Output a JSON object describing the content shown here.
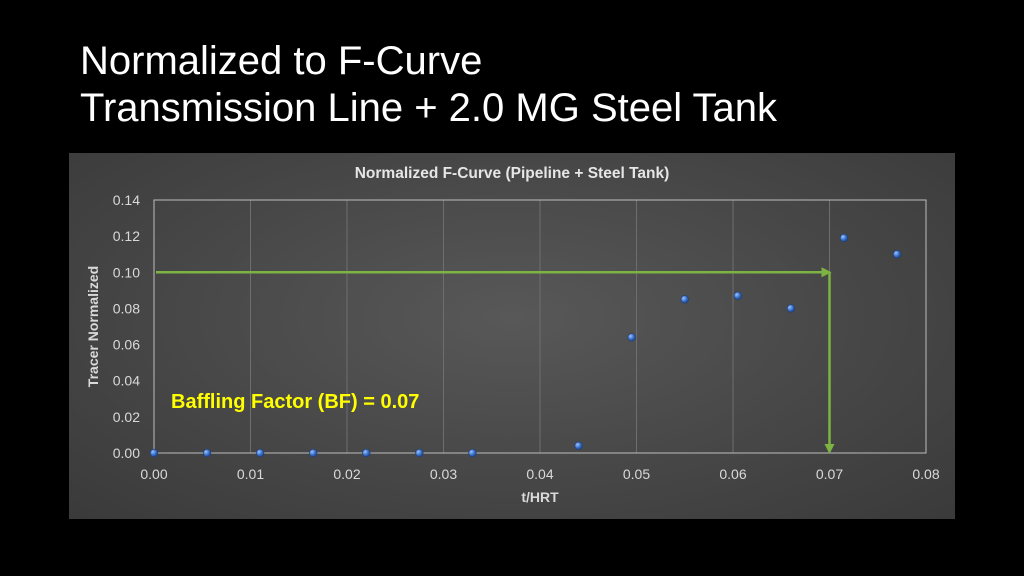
{
  "slide": {
    "title_line1": "Normalized to F-Curve",
    "title_line2": "Transmission Line + 2.0 MG Steel Tank"
  },
  "chart_data": {
    "type": "scatter",
    "title": "Normalized F-Curve (Pipeline + Steel Tank)",
    "xlabel": "t/HRT",
    "ylabel": "Tracer Normalized",
    "xlim": [
      0,
      0.08
    ],
    "ylim": [
      0,
      0.14
    ],
    "x_ticks": [
      "0.00",
      "0.01",
      "0.02",
      "0.03",
      "0.04",
      "0.05",
      "0.06",
      "0.07",
      "0.08"
    ],
    "y_ticks": [
      "0.00",
      "0.02",
      "0.04",
      "0.06",
      "0.08",
      "0.10",
      "0.12",
      "0.14"
    ],
    "grid": "vertical",
    "legend": "none",
    "series": [
      {
        "x": [
          0.0,
          0.0055,
          0.011,
          0.0165,
          0.022,
          0.0275,
          0.033,
          0.044,
          0.0495,
          0.055,
          0.0605,
          0.066,
          0.0715,
          0.077
        ],
        "y": [
          0.0,
          0.0,
          0.0,
          0.0,
          0.0,
          0.0,
          0.0,
          0.004,
          0.064,
          0.085,
          0.087,
          0.08,
          0.119,
          0.11
        ],
        "color": "#4a7fd4"
      }
    ],
    "annotation": {
      "text": "Baffling Factor (BF) = 0.07",
      "color": "#ffff00",
      "arrow_color": "#7cb342",
      "arrow_y": 0.1,
      "arrow_x": 0.07
    }
  }
}
